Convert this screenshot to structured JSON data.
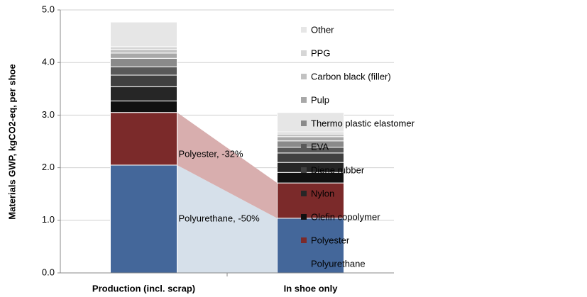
{
  "chart_data": {
    "type": "stacked_bar",
    "y_label": "Materials GWP, kgCO2-eq, per shoe",
    "categories": [
      "Production (incl. scrap)",
      "In shoe only"
    ],
    "series": [
      {
        "name": "Polyurethane",
        "color": "#44679a",
        "values": [
          2.05,
          1.04
        ]
      },
      {
        "name": "Polyester",
        "color": "#7b2a2a",
        "values": [
          1.0,
          0.67
        ]
      },
      {
        "name": "Olefin copolymer",
        "color": "#101010",
        "values": [
          0.22,
          0.2
        ]
      },
      {
        "name": "Nylon",
        "color": "#262626",
        "values": [
          0.27,
          0.19
        ]
      },
      {
        "name": "Diene rubber",
        "color": "#404040",
        "values": [
          0.22,
          0.18
        ]
      },
      {
        "name": "EVA",
        "color": "#595959",
        "values": [
          0.16,
          0.11
        ]
      },
      {
        "name": "Thermo plastic elastomer",
        "color": "#8a8a8a",
        "values": [
          0.16,
          0.12
        ]
      },
      {
        "name": "Pulp",
        "color": "#a8a8a8",
        "values": [
          0.1,
          0.08
        ]
      },
      {
        "name": "Carbon black (filler)",
        "color": "#c2c2c2",
        "values": [
          0.07,
          0.05
        ]
      },
      {
        "name": "PPG",
        "color": "#d6d6d6",
        "values": [
          0.05,
          0.04
        ]
      },
      {
        "name": "Other",
        "color": "#e6e6e6",
        "values": [
          0.47,
          0.37
        ]
      }
    ],
    "connectors": [
      {
        "series": 0,
        "color": "#d6e0ea",
        "label": "Polyurethane, -50%"
      },
      {
        "series": 1,
        "color": "#d8aeae",
        "label": "Polyester, -32%"
      }
    ],
    "ylim": [
      0,
      5
    ],
    "yticks": [
      {
        "value": 0,
        "label": "0.0"
      },
      {
        "value": 1,
        "label": "1.0"
      },
      {
        "value": 2,
        "label": "2.0"
      },
      {
        "value": 3,
        "label": "3.0"
      },
      {
        "value": 4,
        "label": "4.0"
      },
      {
        "value": 5,
        "label": "5.0"
      }
    ],
    "grid": true,
    "legend": "right"
  }
}
